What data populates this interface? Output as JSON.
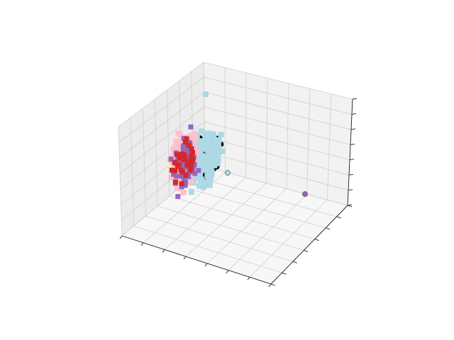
{
  "chart_data": {
    "type": "scatter",
    "projection": "3d",
    "title": "",
    "xlabel": "",
    "ylabel": "",
    "zlabel": "",
    "tick_labels_visible": false,
    "grid": true,
    "legend": "none",
    "colors": {
      "pane_left": "#ececec",
      "pane_back": "#f2f2f2",
      "pane_floor": "#f7f7f7",
      "grid": "#cfcfcf",
      "axis_line": "#222222",
      "light_blue": "#add8e6",
      "pink": "#ffc0cb",
      "purple": "#9467bd",
      "red": "#d62728",
      "black": "#000000",
      "yellow": "#ffff99"
    },
    "series": [
      {
        "marker": "square",
        "color": "light_blue"
      },
      {
        "marker": "circle",
        "color": "black"
      },
      {
        "marker": "square",
        "color": "pink"
      },
      {
        "marker": "square",
        "color": "purple"
      },
      {
        "marker": "square",
        "color": "red"
      },
      {
        "marker": "circle",
        "color": "purple"
      },
      {
        "marker": "circle",
        "color": "light_blue"
      },
      {
        "marker": "square",
        "color": "yellow"
      }
    ]
  }
}
